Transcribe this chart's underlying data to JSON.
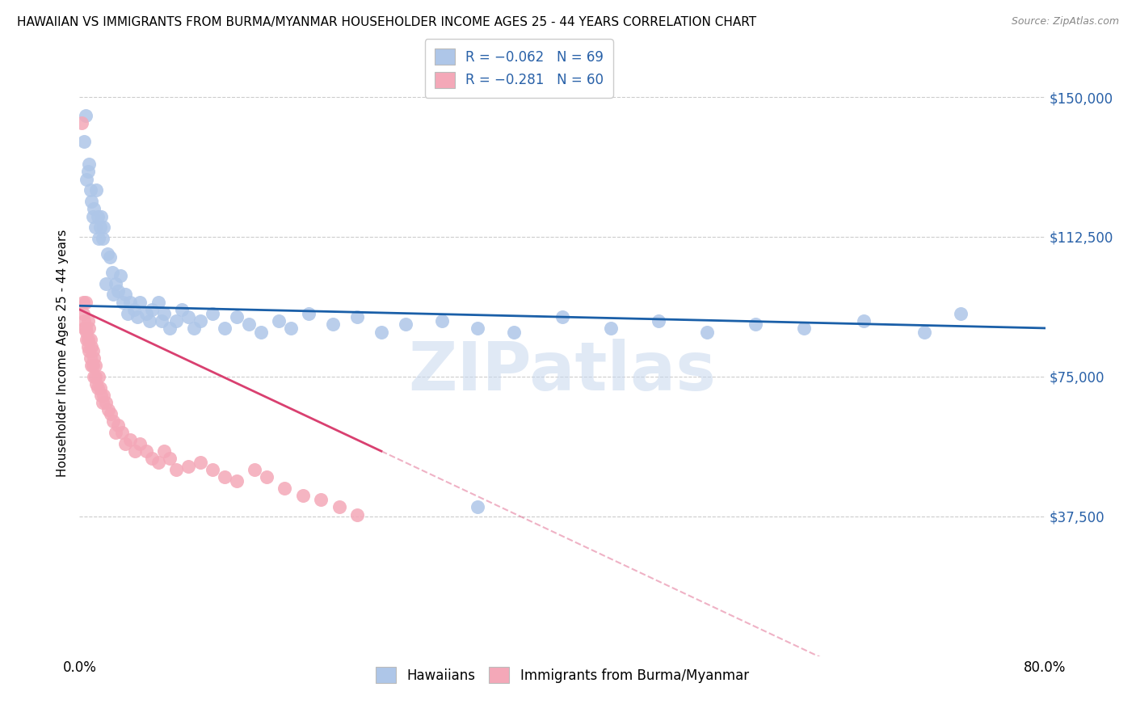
{
  "title": "HAWAIIAN VS IMMIGRANTS FROM BURMA/MYANMAR HOUSEHOLDER INCOME AGES 25 - 44 YEARS CORRELATION CHART",
  "source": "Source: ZipAtlas.com",
  "ylabel": "Householder Income Ages 25 - 44 years",
  "ytick_labels": [
    "$37,500",
    "$75,000",
    "$112,500",
    "$150,000"
  ],
  "ytick_values": [
    37500,
    75000,
    112500,
    150000
  ],
  "ylim": [
    0,
    162500
  ],
  "xlim": [
    0.0,
    0.8
  ],
  "xlim_left_label": "0.0%",
  "xlim_right_label": "80.0%",
  "blue_scatter_color": "#aec6e8",
  "pink_scatter_color": "#f4a8b8",
  "blue_line_color": "#1a5fa8",
  "pink_line_color": "#d94070",
  "grid_color": "#cccccc",
  "watermark_text": "ZIPatlas",
  "watermark_color": "#c8d8ee",
  "hawaiians_x": [
    0.004,
    0.005,
    0.006,
    0.007,
    0.008,
    0.009,
    0.01,
    0.011,
    0.012,
    0.013,
    0.014,
    0.015,
    0.016,
    0.017,
    0.018,
    0.019,
    0.02,
    0.022,
    0.023,
    0.025,
    0.027,
    0.028,
    0.03,
    0.032,
    0.034,
    0.036,
    0.038,
    0.04,
    0.042,
    0.045,
    0.048,
    0.05,
    0.055,
    0.058,
    0.06,
    0.065,
    0.068,
    0.07,
    0.075,
    0.08,
    0.085,
    0.09,
    0.095,
    0.1,
    0.11,
    0.12,
    0.13,
    0.14,
    0.15,
    0.165,
    0.175,
    0.19,
    0.21,
    0.23,
    0.25,
    0.27,
    0.3,
    0.33,
    0.36,
    0.4,
    0.44,
    0.48,
    0.52,
    0.56,
    0.6,
    0.65,
    0.7,
    0.73,
    0.33
  ],
  "hawaiians_y": [
    138000,
    145000,
    128000,
    130000,
    132000,
    125000,
    122000,
    118000,
    120000,
    115000,
    125000,
    118000,
    112000,
    115000,
    118000,
    112000,
    115000,
    100000,
    108000,
    107000,
    103000,
    97000,
    100000,
    98000,
    102000,
    95000,
    97000,
    92000,
    95000,
    93000,
    91000,
    95000,
    92000,
    90000,
    93000,
    95000,
    90000,
    92000,
    88000,
    90000,
    93000,
    91000,
    88000,
    90000,
    92000,
    88000,
    91000,
    89000,
    87000,
    90000,
    88000,
    92000,
    89000,
    91000,
    87000,
    89000,
    90000,
    88000,
    87000,
    91000,
    88000,
    90000,
    87000,
    89000,
    88000,
    90000,
    87000,
    92000,
    40000
  ],
  "burma_x": [
    0.002,
    0.003,
    0.003,
    0.004,
    0.004,
    0.005,
    0.005,
    0.006,
    0.006,
    0.007,
    0.007,
    0.007,
    0.008,
    0.008,
    0.009,
    0.009,
    0.01,
    0.01,
    0.011,
    0.011,
    0.012,
    0.012,
    0.013,
    0.013,
    0.014,
    0.015,
    0.016,
    0.017,
    0.018,
    0.019,
    0.02,
    0.022,
    0.024,
    0.026,
    0.028,
    0.03,
    0.032,
    0.035,
    0.038,
    0.042,
    0.046,
    0.05,
    0.055,
    0.06,
    0.065,
    0.07,
    0.075,
    0.08,
    0.09,
    0.1,
    0.11,
    0.12,
    0.13,
    0.145,
    0.155,
    0.17,
    0.185,
    0.2,
    0.215,
    0.23
  ],
  "burma_y": [
    143000,
    95000,
    92000,
    90000,
    88000,
    95000,
    88000,
    87000,
    85000,
    90000,
    85000,
    83000,
    88000,
    82000,
    85000,
    80000,
    83000,
    78000,
    82000,
    78000,
    80000,
    75000,
    78000,
    75000,
    73000,
    72000,
    75000,
    72000,
    70000,
    68000,
    70000,
    68000,
    66000,
    65000,
    63000,
    60000,
    62000,
    60000,
    57000,
    58000,
    55000,
    57000,
    55000,
    53000,
    52000,
    55000,
    53000,
    50000,
    51000,
    52000,
    50000,
    48000,
    47000,
    50000,
    48000,
    45000,
    43000,
    42000,
    40000,
    38000
  ]
}
